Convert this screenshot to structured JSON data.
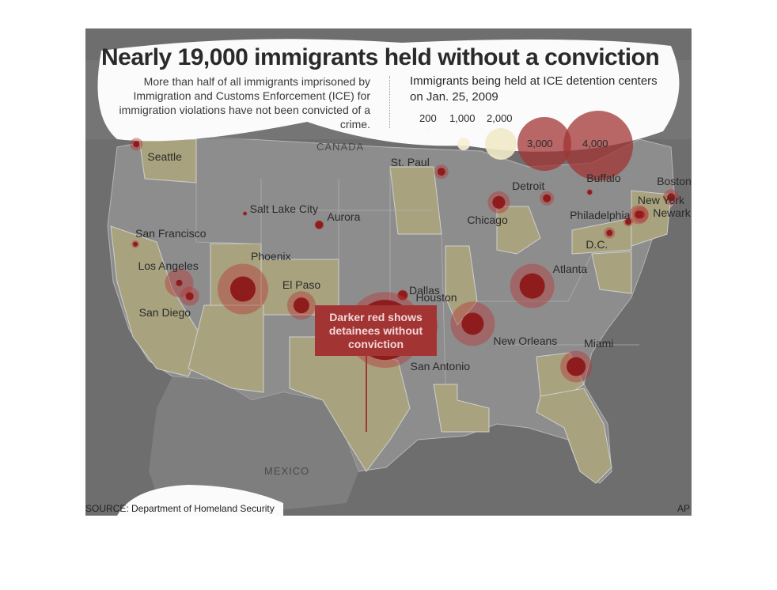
{
  "title": "Nearly 19,000 immigrants held without a conviction",
  "intro": "More than half of all immigrants imprisoned by Immigration and Customs Enforcement (ICE) for immigration violations have not been convicted of a crime.",
  "legend": {
    "title": "Immigrants being held at ICE detention centers on Jan. 25, 2009",
    "sizes": [
      {
        "label": "200",
        "value": 200
      },
      {
        "label": "1,000",
        "value": 1000
      },
      {
        "label": "2,000",
        "value": 2000
      },
      {
        "label": "3,000",
        "value": 3000
      },
      {
        "label": "4,000",
        "value": 4000
      }
    ]
  },
  "callout": "Darker red shows detainees without conviction",
  "countries": {
    "canada": "CANADA",
    "mexico": "MEXICO"
  },
  "cities": [
    {
      "name": "Seattle",
      "lon": -122.3,
      "lat": 47.6
    },
    {
      "name": "San Francisco",
      "lon": -122.4,
      "lat": 37.8
    },
    {
      "name": "Los Angeles",
      "lon": -118.2,
      "lat": 34.0
    },
    {
      "name": "San Diego",
      "lon": -117.2,
      "lat": 32.7
    },
    {
      "name": "Salt Lake City",
      "lon": -111.9,
      "lat": 40.8
    },
    {
      "name": "Phoenix",
      "lon": -112.1,
      "lat": 33.4
    },
    {
      "name": "Aurora",
      "lon": -104.8,
      "lat": 39.7
    },
    {
      "name": "El Paso",
      "lon": -106.5,
      "lat": 31.8
    },
    {
      "name": "Dallas",
      "lon": -96.8,
      "lat": 32.8
    },
    {
      "name": "Houston",
      "lon": -95.4,
      "lat": 29.8
    },
    {
      "name": "San Antonio",
      "lon": -98.5,
      "lat": 29.4
    },
    {
      "name": "St. Paul",
      "lon": -93.1,
      "lat": 44.9
    },
    {
      "name": "Chicago",
      "lon": -87.6,
      "lat": 41.9
    },
    {
      "name": "Detroit",
      "lon": -83.0,
      "lat": 42.3
    },
    {
      "name": "New Orleans",
      "lon": -90.1,
      "lat": 30.0
    },
    {
      "name": "Atlanta",
      "lon": -84.4,
      "lat": 33.7
    },
    {
      "name": "Miami",
      "lon": -80.2,
      "lat": 25.8
    },
    {
      "name": "Buffalo",
      "lon": -78.9,
      "lat": 42.9
    },
    {
      "name": "Boston",
      "lon": -71.1,
      "lat": 42.4
    },
    {
      "name": "New York",
      "lon": -74.0,
      "lat": 40.7
    },
    {
      "name": "Newark",
      "lon": -74.2,
      "lat": 40.7
    },
    {
      "name": "Philadelphia",
      "lon": -75.2,
      "lat": 40.0
    },
    {
      "name": "D.C.",
      "lon": -77.0,
      "lat": 38.9
    }
  ],
  "source": "SOURCE: Department of Homeland Security",
  "credit": "AP",
  "colors": {
    "background": "#6e6e6e",
    "land": "#9a9a9a",
    "ice_state": "#a8a37e",
    "bubble": "#8e1c1c",
    "callout": "#a23434"
  }
}
